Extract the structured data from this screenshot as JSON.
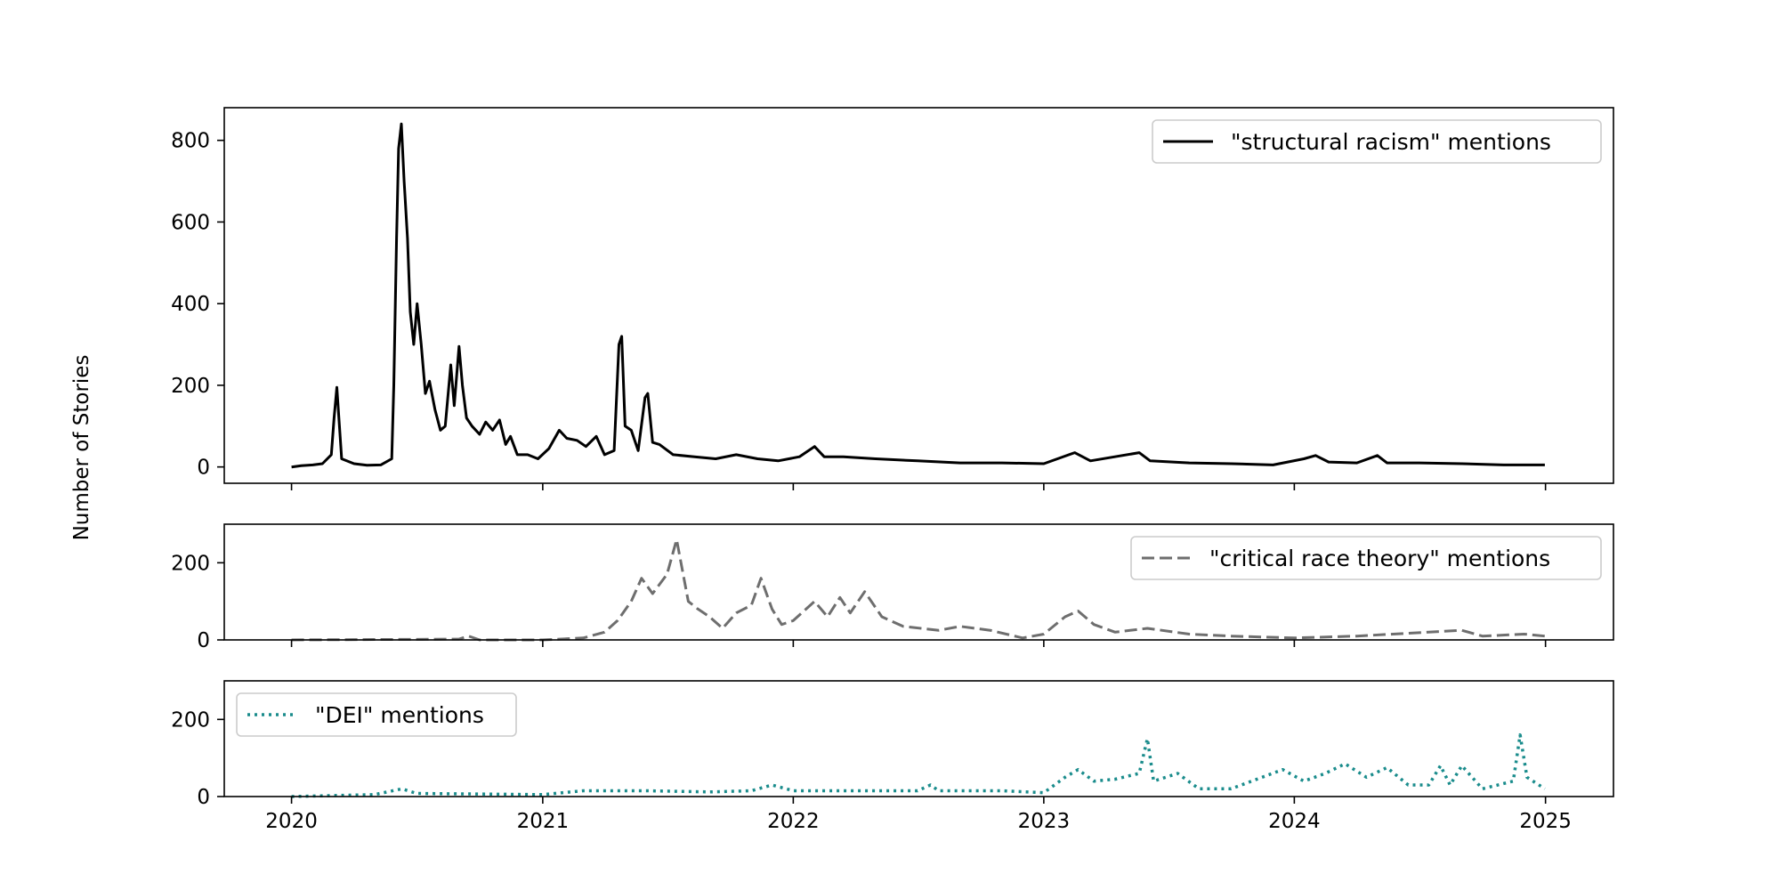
{
  "figure": {
    "ylabel": "Number of Stories",
    "x_ticks": [
      "2020",
      "2021",
      "2022",
      "2023",
      "2024",
      "2025"
    ],
    "x_range": [
      "2019-09-25",
      "2025-04-10"
    ]
  },
  "chart_data": [
    {
      "type": "line",
      "x_unit": "date",
      "legend_position": "upper-right",
      "ylim": [
        -40,
        880
      ],
      "yticks": [
        0,
        200,
        400,
        600,
        800
      ],
      "series": [
        {
          "name": "\"structural racism\" mentions",
          "color": "#000000",
          "style": "solid",
          "points": [
            [
              "2020-01-01",
              0
            ],
            [
              "2020-01-15",
              3
            ],
            [
              "2020-02-01",
              5
            ],
            [
              "2020-02-15",
              8
            ],
            [
              "2020-02-28",
              30
            ],
            [
              "2020-03-03",
              120
            ],
            [
              "2020-03-07",
              195
            ],
            [
              "2020-03-10",
              120
            ],
            [
              "2020-03-14",
              20
            ],
            [
              "2020-04-01",
              8
            ],
            [
              "2020-04-20",
              4
            ],
            [
              "2020-05-10",
              5
            ],
            [
              "2020-05-26",
              20
            ],
            [
              "2020-05-29",
              200
            ],
            [
              "2020-06-02",
              560
            ],
            [
              "2020-06-05",
              780
            ],
            [
              "2020-06-09",
              840
            ],
            [
              "2020-06-13",
              700
            ],
            [
              "2020-06-18",
              560
            ],
            [
              "2020-06-22",
              380
            ],
            [
              "2020-06-27",
              300
            ],
            [
              "2020-07-02",
              400
            ],
            [
              "2020-07-08",
              300
            ],
            [
              "2020-07-14",
              180
            ],
            [
              "2020-07-20",
              210
            ],
            [
              "2020-07-28",
              140
            ],
            [
              "2020-08-05",
              90
            ],
            [
              "2020-08-12",
              100
            ],
            [
              "2020-08-20",
              250
            ],
            [
              "2020-08-25",
              150
            ],
            [
              "2020-09-01",
              295
            ],
            [
              "2020-09-06",
              200
            ],
            [
              "2020-09-12",
              120
            ],
            [
              "2020-09-20",
              100
            ],
            [
              "2020-10-01",
              80
            ],
            [
              "2020-10-10",
              110
            ],
            [
              "2020-10-20",
              90
            ],
            [
              "2020-10-30",
              115
            ],
            [
              "2020-11-08",
              55
            ],
            [
              "2020-11-15",
              75
            ],
            [
              "2020-11-25",
              30
            ],
            [
              "2020-12-10",
              30
            ],
            [
              "2020-12-25",
              20
            ],
            [
              "2021-01-10",
              45
            ],
            [
              "2021-01-25",
              90
            ],
            [
              "2021-02-05",
              70
            ],
            [
              "2021-02-20",
              65
            ],
            [
              "2021-03-05",
              50
            ],
            [
              "2021-03-20",
              75
            ],
            [
              "2021-04-01",
              30
            ],
            [
              "2021-04-15",
              40
            ],
            [
              "2021-04-22",
              300
            ],
            [
              "2021-04-26",
              320
            ],
            [
              "2021-05-01",
              100
            ],
            [
              "2021-05-10",
              90
            ],
            [
              "2021-05-20",
              40
            ],
            [
              "2021-05-30",
              170
            ],
            [
              "2021-06-03",
              180
            ],
            [
              "2021-06-10",
              60
            ],
            [
              "2021-06-20",
              55
            ],
            [
              "2021-07-10",
              30
            ],
            [
              "2021-08-10",
              25
            ],
            [
              "2021-09-10",
              20
            ],
            [
              "2021-10-10",
              30
            ],
            [
              "2021-11-10",
              20
            ],
            [
              "2021-12-10",
              15
            ],
            [
              "2022-01-10",
              25
            ],
            [
              "2022-02-01",
              50
            ],
            [
              "2022-02-15",
              25
            ],
            [
              "2022-03-15",
              25
            ],
            [
              "2022-05-01",
              20
            ],
            [
              "2022-07-01",
              15
            ],
            [
              "2022-09-01",
              10
            ],
            [
              "2022-11-01",
              10
            ],
            [
              "2023-01-01",
              8
            ],
            [
              "2023-02-15",
              35
            ],
            [
              "2023-03-10",
              15
            ],
            [
              "2023-05-20",
              35
            ],
            [
              "2023-06-05",
              15
            ],
            [
              "2023-08-01",
              10
            ],
            [
              "2023-10-01",
              8
            ],
            [
              "2023-12-01",
              5
            ],
            [
              "2024-01-15",
              20
            ],
            [
              "2024-02-01",
              28
            ],
            [
              "2024-02-20",
              12
            ],
            [
              "2024-04-01",
              10
            ],
            [
              "2024-05-01",
              28
            ],
            [
              "2024-05-15",
              10
            ],
            [
              "2024-07-01",
              10
            ],
            [
              "2024-09-01",
              8
            ],
            [
              "2024-11-01",
              5
            ],
            [
              "2024-12-31",
              5
            ]
          ]
        }
      ]
    },
    {
      "type": "line",
      "x_unit": "date",
      "legend_position": "upper-right",
      "ylim": [
        0,
        300
      ],
      "yticks": [
        0,
        200
      ],
      "series": [
        {
          "name": "\"critical race theory\" mentions",
          "color": "#6e6e6e",
          "style": "dashed",
          "points": [
            [
              "2020-01-01",
              0
            ],
            [
              "2020-09-01",
              2
            ],
            [
              "2020-09-15",
              10
            ],
            [
              "2020-10-01",
              0
            ],
            [
              "2021-01-01",
              0
            ],
            [
              "2021-03-01",
              5
            ],
            [
              "2021-04-01",
              20
            ],
            [
              "2021-04-20",
              50
            ],
            [
              "2021-05-10",
              100
            ],
            [
              "2021-05-25",
              160
            ],
            [
              "2021-06-10",
              120
            ],
            [
              "2021-07-01",
              170
            ],
            [
              "2021-07-15",
              260
            ],
            [
              "2021-08-01",
              100
            ],
            [
              "2021-08-15",
              80
            ],
            [
              "2021-09-01",
              60
            ],
            [
              "2021-09-20",
              30
            ],
            [
              "2021-10-10",
              70
            ],
            [
              "2021-11-01",
              90
            ],
            [
              "2021-11-15",
              160
            ],
            [
              "2021-12-01",
              80
            ],
            [
              "2021-12-15",
              40
            ],
            [
              "2022-01-01",
              50
            ],
            [
              "2022-02-01",
              100
            ],
            [
              "2022-02-20",
              60
            ],
            [
              "2022-03-10",
              110
            ],
            [
              "2022-03-25",
              70
            ],
            [
              "2022-04-15",
              125
            ],
            [
              "2022-05-10",
              60
            ],
            [
              "2022-06-10",
              35
            ],
            [
              "2022-08-01",
              25
            ],
            [
              "2022-09-01",
              35
            ],
            [
              "2022-10-15",
              25
            ],
            [
              "2022-12-01",
              5
            ],
            [
              "2023-01-01",
              15
            ],
            [
              "2023-02-01",
              60
            ],
            [
              "2023-02-20",
              75
            ],
            [
              "2023-03-15",
              40
            ],
            [
              "2023-04-15",
              20
            ],
            [
              "2023-06-01",
              30
            ],
            [
              "2023-08-01",
              15
            ],
            [
              "2023-10-01",
              10
            ],
            [
              "2024-01-01",
              5
            ],
            [
              "2024-04-01",
              10
            ],
            [
              "2024-09-01",
              25
            ],
            [
              "2024-10-01",
              10
            ],
            [
              "2024-12-01",
              15
            ],
            [
              "2024-12-31",
              10
            ]
          ]
        }
      ]
    },
    {
      "type": "line",
      "x_unit": "date",
      "legend_position": "upper-left",
      "ylim": [
        0,
        300
      ],
      "yticks": [
        0,
        200
      ],
      "series": [
        {
          "name": "\"DEI\" mentions",
          "color": "#1a8c8c",
          "style": "dotted",
          "points": [
            [
              "2020-01-01",
              0
            ],
            [
              "2020-05-01",
              5
            ],
            [
              "2020-06-10",
              20
            ],
            [
              "2020-07-01",
              8
            ],
            [
              "2021-01-01",
              5
            ],
            [
              "2021-03-01",
              15
            ],
            [
              "2021-06-01",
              15
            ],
            [
              "2021-09-01",
              12
            ],
            [
              "2021-11-01",
              15
            ],
            [
              "2021-12-01",
              30
            ],
            [
              "2022-01-01",
              15
            ],
            [
              "2022-04-01",
              15
            ],
            [
              "2022-07-01",
              15
            ],
            [
              "2022-07-20",
              30
            ],
            [
              "2022-08-01",
              15
            ],
            [
              "2022-11-01",
              15
            ],
            [
              "2023-01-01",
              10
            ],
            [
              "2023-02-01",
              50
            ],
            [
              "2023-02-20",
              70
            ],
            [
              "2023-03-15",
              40
            ],
            [
              "2023-04-15",
              45
            ],
            [
              "2023-05-20",
              60
            ],
            [
              "2023-06-01",
              150
            ],
            [
              "2023-06-10",
              40
            ],
            [
              "2023-07-15",
              60
            ],
            [
              "2023-08-15",
              20
            ],
            [
              "2023-10-01",
              20
            ],
            [
              "2023-12-15",
              70
            ],
            [
              "2024-01-15",
              40
            ],
            [
              "2024-02-15",
              60
            ],
            [
              "2024-03-15",
              85
            ],
            [
              "2024-04-15",
              50
            ],
            [
              "2024-05-15",
              75
            ],
            [
              "2024-06-15",
              30
            ],
            [
              "2024-07-15",
              30
            ],
            [
              "2024-08-01",
              80
            ],
            [
              "2024-08-15",
              30
            ],
            [
              "2024-09-01",
              80
            ],
            [
              "2024-10-01",
              20
            ],
            [
              "2024-11-15",
              40
            ],
            [
              "2024-11-25",
              160
            ],
            [
              "2024-12-05",
              50
            ],
            [
              "2024-12-31",
              20
            ]
          ]
        }
      ]
    }
  ]
}
